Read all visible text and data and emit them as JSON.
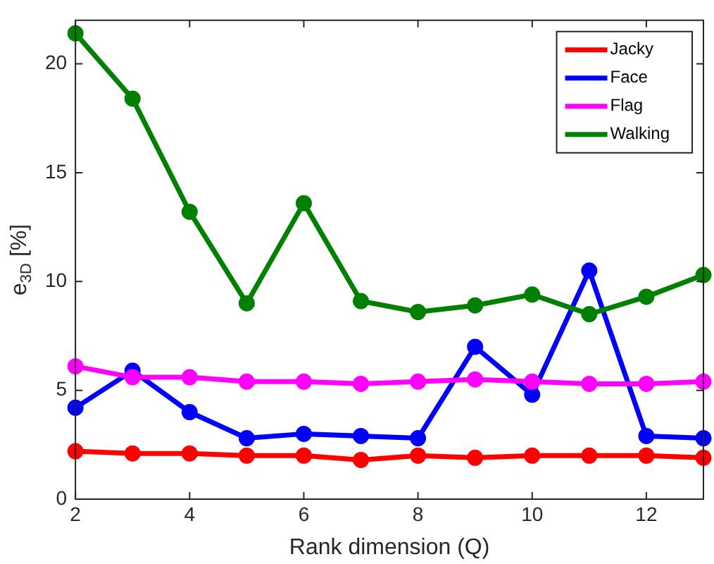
{
  "chart_data": {
    "type": "line",
    "xlabel": "Rank dimension (Q)",
    "ylabel": "e$_{3D}$ [%]",
    "x": [
      2,
      3,
      4,
      5,
      6,
      7,
      8,
      9,
      10,
      11,
      12,
      13
    ],
    "series": [
      {
        "name": "Jacky",
        "color": "#ff0000",
        "values": [
          2.2,
          2.1,
          2.1,
          2.0,
          2.0,
          1.8,
          2.0,
          1.9,
          2.0,
          2.0,
          2.0,
          1.9
        ]
      },
      {
        "name": "Face",
        "color": "#0000ff",
        "values": [
          4.2,
          5.9,
          4.0,
          2.8,
          3.0,
          2.9,
          2.8,
          7.0,
          4.8,
          10.5,
          2.9,
          2.8
        ]
      },
      {
        "name": "Flag",
        "color": "#ff00ff",
        "values": [
          6.1,
          5.6,
          5.6,
          5.4,
          5.4,
          5.3,
          5.4,
          5.5,
          5.4,
          5.3,
          5.3,
          5.4
        ]
      },
      {
        "name": "Walking",
        "color": "#008000",
        "values": [
          21.4,
          18.4,
          13.2,
          9.0,
          13.6,
          9.1,
          8.6,
          8.9,
          9.4,
          8.5,
          9.3,
          10.3
        ]
      }
    ],
    "xlim": [
      2,
      13
    ],
    "xticks": [
      2,
      4,
      6,
      8,
      10,
      12
    ],
    "ylim": [
      0,
      22
    ],
    "yticks": [
      0,
      5,
      10,
      15,
      20
    ],
    "grid": false,
    "legend": "top right",
    "marker": "circle",
    "line_style": "solid"
  }
}
